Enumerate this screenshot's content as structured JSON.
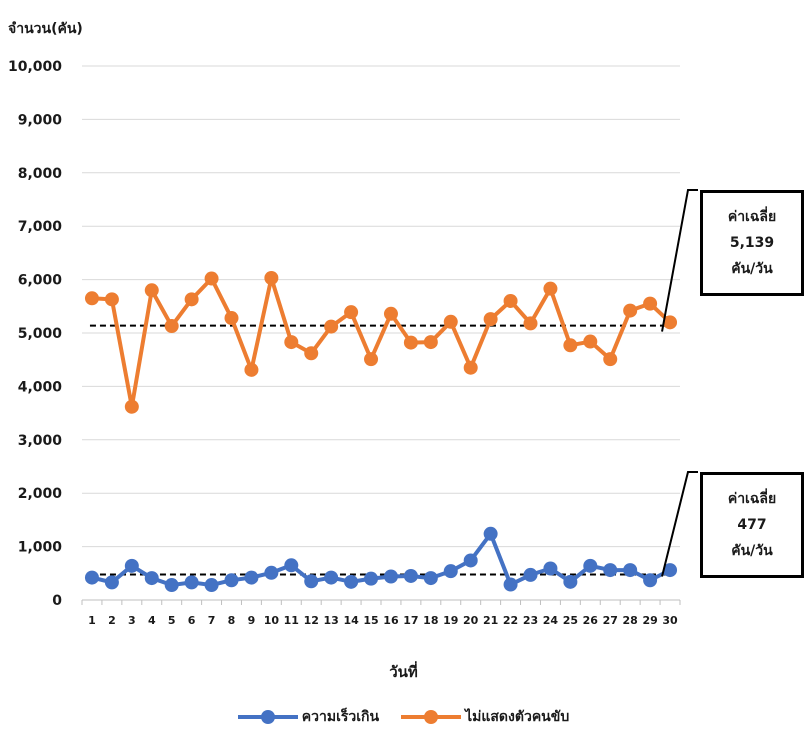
{
  "chart_data": {
    "type": "line",
    "ylabel": "จำนวน(คัน)",
    "xlabel": "วันที่",
    "ylim": [
      0,
      10000
    ],
    "yticks": [
      "0",
      "1,000",
      "2,000",
      "3,000",
      "4,000",
      "5,000",
      "6,000",
      "7,000",
      "8,000",
      "9,000",
      "10,000"
    ],
    "x": [
      "1",
      "2",
      "3",
      "4",
      "5",
      "6",
      "7",
      "8",
      "9",
      "10",
      "11",
      "12",
      "13",
      "14",
      "15",
      "16",
      "17",
      "18",
      "19",
      "20",
      "21",
      "22",
      "23",
      "24",
      "25",
      "26",
      "27",
      "28",
      "29",
      "30"
    ],
    "grid": true,
    "legend_position": "bottom",
    "series": [
      {
        "name": "ความเร็วเกิน",
        "color": "#4472C4",
        "values": [
          420,
          330,
          640,
          410,
          280,
          330,
          280,
          370,
          420,
          510,
          650,
          350,
          420,
          340,
          400,
          440,
          450,
          410,
          540,
          740,
          1240,
          290,
          470,
          590,
          340,
          640,
          560,
          560,
          370,
          560
        ],
        "average": 477
      },
      {
        "name": "ไม่แสดงตัวคนขับ",
        "color": "#ED7D31",
        "values": [
          5650,
          5630,
          3620,
          5800,
          5130,
          5630,
          6020,
          5280,
          4310,
          6030,
          4830,
          4620,
          5120,
          5390,
          4510,
          5360,
          4820,
          4830,
          5210,
          4350,
          5260,
          5600,
          5180,
          5830,
          4770,
          4840,
          4510,
          5420,
          5550,
          5200
        ],
        "average": 5139
      }
    ]
  },
  "callouts": {
    "orange": {
      "line1": "ค่าเฉลี่ย",
      "line2": "5,139",
      "line3": "คัน/วัน"
    },
    "blue": {
      "line1": "ค่าเฉลี่ย",
      "line2": "477",
      "line3": "คัน/วัน"
    }
  }
}
